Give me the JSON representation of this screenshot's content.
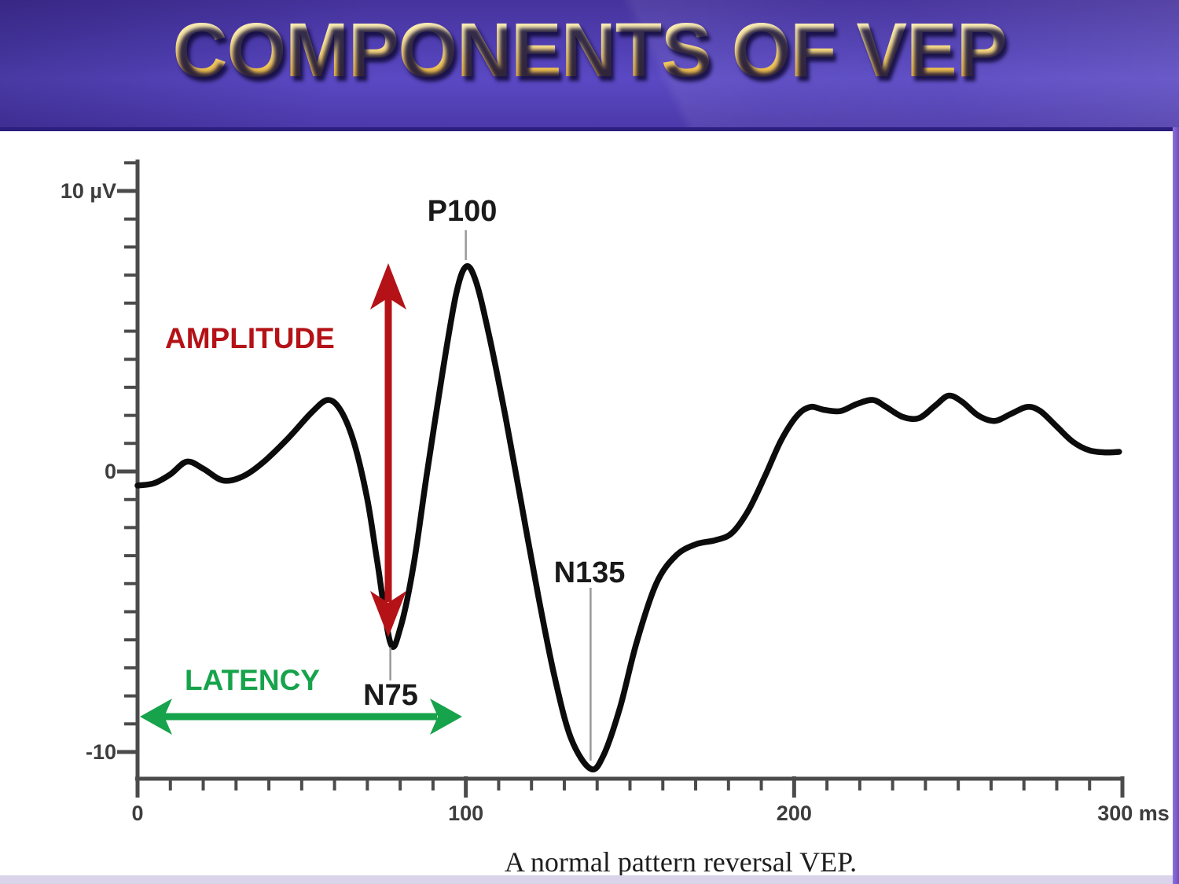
{
  "header": {
    "title": "COMPONENTS OF VEP"
  },
  "caption": "A normal pattern reversal VEP.",
  "chart_data": {
    "type": "line",
    "title": "Components of VEP",
    "caption": "A normal pattern reversal VEP.",
    "x_axis": {
      "unit": "ms",
      "range": [
        0,
        300
      ],
      "minor_tick_step": 10,
      "labeled_ticks": [
        {
          "t": 0,
          "label": "0"
        },
        {
          "t": 100,
          "label": "100"
        },
        {
          "t": 200,
          "label": "200"
        },
        {
          "t": 300,
          "label": "300 ms"
        }
      ]
    },
    "y_axis": {
      "unit": "µV",
      "range": [
        -11,
        11
      ],
      "minor_tick_step": 1,
      "labeled_ticks": [
        {
          "v": 10,
          "label": "10 µV"
        },
        {
          "v": 0,
          "label": "0"
        },
        {
          "v": -10,
          "label": "-10"
        }
      ]
    },
    "series": [
      {
        "name": "normal pattern reversal VEP waveform",
        "color": "#0c0c0c",
        "points": [
          [
            0,
            -0.5
          ],
          [
            5,
            -0.42
          ],
          [
            10,
            -0.1
          ],
          [
            15,
            0.35
          ],
          [
            20,
            0.1
          ],
          [
            26,
            -0.32
          ],
          [
            32,
            -0.18
          ],
          [
            38,
            0.3
          ],
          [
            46,
            1.2
          ],
          [
            53,
            2.1
          ],
          [
            58,
            2.55
          ],
          [
            62,
            2.15
          ],
          [
            66,
            1.0
          ],
          [
            70,
            -1.0
          ],
          [
            73,
            -3.2
          ],
          [
            77,
            -6.1
          ],
          [
            80,
            -5.6
          ],
          [
            84,
            -3.4
          ],
          [
            88,
            -0.2
          ],
          [
            93,
            3.6
          ],
          [
            97,
            6.3
          ],
          [
            100,
            7.3
          ],
          [
            103,
            6.8
          ],
          [
            107,
            4.9
          ],
          [
            112,
            2.0
          ],
          [
            117,
            -1.2
          ],
          [
            122,
            -4.4
          ],
          [
            127,
            -7.3
          ],
          [
            132,
            -9.5
          ],
          [
            138,
            -10.6
          ],
          [
            142,
            -10.1
          ],
          [
            147,
            -8.4
          ],
          [
            152,
            -6.1
          ],
          [
            158,
            -4.0
          ],
          [
            164,
            -3.0
          ],
          [
            170,
            -2.6
          ],
          [
            176,
            -2.45
          ],
          [
            181,
            -2.2
          ],
          [
            186,
            -1.4
          ],
          [
            191,
            -0.2
          ],
          [
            196,
            1.1
          ],
          [
            201,
            2.0
          ],
          [
            205,
            2.3
          ],
          [
            209,
            2.2
          ],
          [
            214,
            2.15
          ],
          [
            219,
            2.4
          ],
          [
            224,
            2.55
          ],
          [
            228,
            2.3
          ],
          [
            233,
            1.95
          ],
          [
            238,
            1.9
          ],
          [
            243,
            2.35
          ],
          [
            247,
            2.7
          ],
          [
            251,
            2.5
          ],
          [
            256,
            2.0
          ],
          [
            261,
            1.8
          ],
          [
            266,
            2.05
          ],
          [
            271,
            2.3
          ],
          [
            275,
            2.15
          ],
          [
            280,
            1.6
          ],
          [
            285,
            1.05
          ],
          [
            290,
            0.75
          ],
          [
            295,
            0.68
          ],
          [
            299,
            0.7
          ]
        ]
      }
    ],
    "peak_annotations": [
      {
        "label": "P100",
        "t": 100,
        "v": 7.3
      },
      {
        "label": "N75",
        "t": 77,
        "v": -6.1
      },
      {
        "label": "N135",
        "t": 138,
        "v": -10.6
      }
    ],
    "measure_annotations": [
      {
        "label": "AMPLITUDE",
        "kind": "vertical-double-arrow",
        "color": "#b41217",
        "meaning": "N75 to P100 amplitude"
      },
      {
        "label": "LATENCY",
        "kind": "horizontal-double-arrow",
        "color": "#17a34b",
        "meaning": "0 to P100 latency"
      }
    ],
    "colors": {
      "curve": "#0c0c0c",
      "axis": "#4b4b4b",
      "tick_label": "#3d3d3d",
      "peak_label": "#1a1a1a",
      "leader_line": "#999999",
      "amplitude": "#b41217",
      "latency": "#17a34b"
    },
    "layout_hints": {
      "grid": false,
      "legend": "none"
    }
  }
}
